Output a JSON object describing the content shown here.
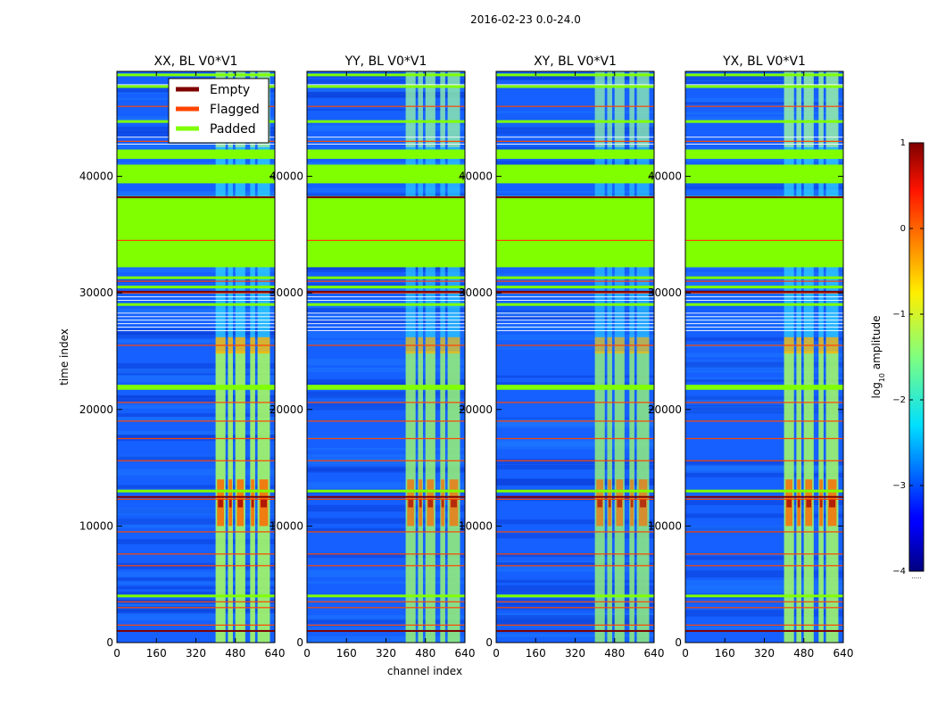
{
  "figure_title": "2016-02-23 0.0-24.0",
  "colors": {
    "empty": "#800000",
    "flagged": "#ff4500",
    "padded": "#7fff00",
    "background_blue": "#1560ff",
    "axis": "#000000"
  },
  "chart_data": {
    "type": "heatmap",
    "title": "2016-02-23 0.0-24.0",
    "xlabel": "channel index",
    "ylabel": "time index",
    "xlim": [
      0,
      640
    ],
    "ylim": [
      0,
      49000
    ],
    "xticks": [
      0,
      160,
      320,
      480,
      640
    ],
    "yticks": [
      0,
      10000,
      20000,
      30000,
      40000
    ],
    "panels": [
      {
        "title": "XX, BL V0*V1",
        "band_intensity": 1.0
      },
      {
        "title": "YY, BL V0*V1",
        "band_intensity": 0.85
      },
      {
        "title": "XY, BL V0*V1",
        "band_intensity": 0.8
      },
      {
        "title": "YX, BL V0*V1",
        "band_intensity": 0.95
      }
    ],
    "legend": {
      "location": "upper-right",
      "entries": [
        {
          "label": "Empty",
          "color": "#800000"
        },
        {
          "label": "Flagged",
          "color": "#ff4500"
        },
        {
          "label": "Padded",
          "color": "#7fff00"
        }
      ]
    },
    "padded_blocks": [
      [
        32200,
        38300
      ],
      [
        39400,
        41000
      ],
      [
        41500,
        42300
      ]
    ],
    "padded_lines": [
      4000,
      13000,
      21800,
      22000,
      29000,
      30500,
      31300,
      44700,
      47700,
      48700
    ],
    "flagged_lines": [
      1500,
      3000,
      3500,
      6600,
      7600,
      9500,
      12300,
      15600,
      17500,
      19000,
      20600,
      25500,
      30000,
      31000,
      34500,
      43000,
      46000
    ],
    "empty_lines": [
      1000,
      12500,
      30100,
      38200
    ],
    "rfi_channels": [
      [
        400,
        440
      ],
      [
        450,
        470
      ],
      [
        480,
        520
      ],
      [
        540,
        560
      ],
      [
        570,
        620
      ]
    ],
    "colorbar": {
      "label": "log",
      "label_subscript": "10",
      "label_suffix": " amplitude",
      "range": [
        -4,
        1
      ],
      "ticks": [
        "1",
        "0",
        "−1",
        "−2",
        "−3",
        "−4"
      ],
      "colormap": "jet",
      "footnote": "....."
    }
  }
}
